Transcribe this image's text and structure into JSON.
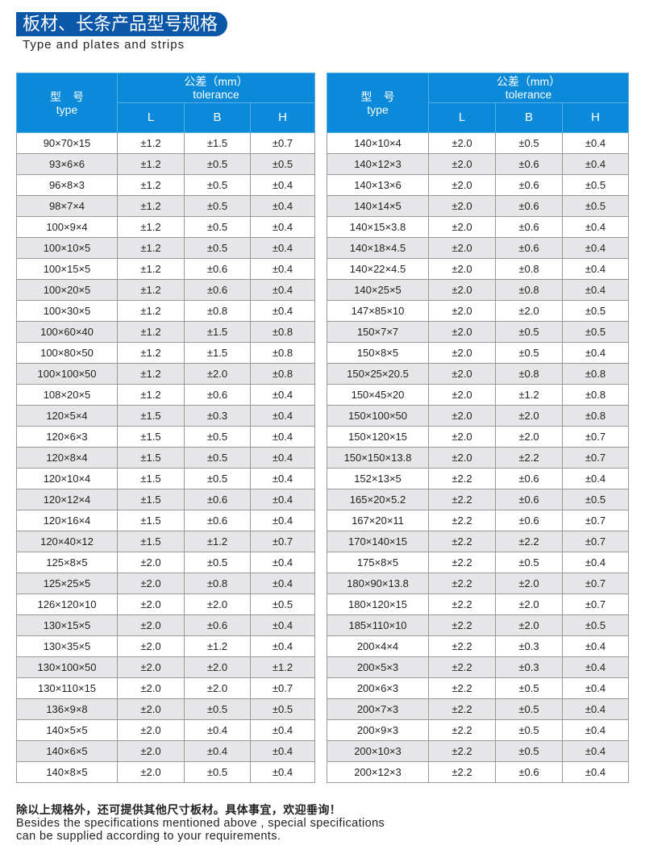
{
  "header": {
    "title": "板材、长条产品型号规格",
    "subtitle": "Type and plates and strips",
    "accent_color": "#0a57a8",
    "table_header_color": "#0a8ad8"
  },
  "table_headers": {
    "type_cn": "型　号",
    "type_en": "type",
    "tolerance_cn": "公差（mm）",
    "tolerance_en": "tolerance",
    "L": "L",
    "B": "B",
    "H": "H"
  },
  "left_table": [
    [
      "90×70×15",
      "±1.2",
      "±1.5",
      "±0.7"
    ],
    [
      "93×6×6",
      "±1.2",
      "±0.5",
      "±0.5"
    ],
    [
      "96×8×3",
      "±1.2",
      "±0.5",
      "±0.4"
    ],
    [
      "98×7×4",
      "±1.2",
      "±0.5",
      "±0.4"
    ],
    [
      "100×9×4",
      "±1.2",
      "±0.5",
      "±0.4"
    ],
    [
      "100×10×5",
      "±1.2",
      "±0.5",
      "±0.4"
    ],
    [
      "100×15×5",
      "±1.2",
      "±0.6",
      "±0.4"
    ],
    [
      "100×20×5",
      "±1.2",
      "±0.6",
      "±0.4"
    ],
    [
      "100×30×5",
      "±1.2",
      "±0.8",
      "±0.4"
    ],
    [
      "100×60×40",
      "±1.2",
      "±1.5",
      "±0.8"
    ],
    [
      "100×80×50",
      "±1.2",
      "±1.5",
      "±0.8"
    ],
    [
      "100×100×50",
      "±1.2",
      "±2.0",
      "±0.8"
    ],
    [
      "108×20×5",
      "±1.2",
      "±0.6",
      "±0.4"
    ],
    [
      "120×5×4",
      "±1.5",
      "±0.3",
      "±0.4"
    ],
    [
      "120×6×3",
      "±1.5",
      "±0.5",
      "±0.4"
    ],
    [
      "120×8×4",
      "±1.5",
      "±0.5",
      "±0.4"
    ],
    [
      "120×10×4",
      "±1.5",
      "±0.5",
      "±0.4"
    ],
    [
      "120×12×4",
      "±1.5",
      "±0.6",
      "±0.4"
    ],
    [
      "120×16×4",
      "±1.5",
      "±0.6",
      "±0.4"
    ],
    [
      "120×40×12",
      "±1.5",
      "±1.2",
      "±0.7"
    ],
    [
      "125×8×5",
      "±2.0",
      "±0.5",
      "±0.4"
    ],
    [
      "125×25×5",
      "±2.0",
      "±0.8",
      "±0.4"
    ],
    [
      "126×120×10",
      "±2.0",
      "±2.0",
      "±0.5"
    ],
    [
      "130×15×5",
      "±2.0",
      "±0.6",
      "±0.4"
    ],
    [
      "130×35×5",
      "±2.0",
      "±1.2",
      "±0.4"
    ],
    [
      "130×100×50",
      "±2.0",
      "±2.0",
      "±1.2"
    ],
    [
      "130×110×15",
      "±2.0",
      "±2.0",
      "±0.7"
    ],
    [
      "136×9×8",
      "±2.0",
      "±0.5",
      "±0.5"
    ],
    [
      "140×5×5",
      "±2.0",
      "±0.4",
      "±0.4"
    ],
    [
      "140×6×5",
      "±2.0",
      "±0.4",
      "±0.4"
    ],
    [
      "140×8×5",
      "±2.0",
      "±0.5",
      "±0.4"
    ]
  ],
  "right_table": [
    [
      "140×10×4",
      "±2.0",
      "±0.5",
      "±0.4"
    ],
    [
      "140×12×3",
      "±2.0",
      "±0.6",
      "±0.4"
    ],
    [
      "140×13×6",
      "±2.0",
      "±0.6",
      "±0.5"
    ],
    [
      "140×14×5",
      "±2.0",
      "±0.6",
      "±0.5"
    ],
    [
      "140×15×3.8",
      "±2.0",
      "±0.6",
      "±0.4"
    ],
    [
      "140×18×4.5",
      "±2.0",
      "±0.6",
      "±0.4"
    ],
    [
      "140×22×4.5",
      "±2.0",
      "±0.8",
      "±0.4"
    ],
    [
      "140×25×5",
      "±2.0",
      "±0.8",
      "±0.4"
    ],
    [
      "147×85×10",
      "±2.0",
      "±2.0",
      "±0.5"
    ],
    [
      "150×7×7",
      "±2.0",
      "±0.5",
      "±0.5"
    ],
    [
      "150×8×5",
      "±2.0",
      "±0.5",
      "±0.4"
    ],
    [
      "150×25×20.5",
      "±2.0",
      "±0.8",
      "±0.8"
    ],
    [
      "150×45×20",
      "±2.0",
      "±1.2",
      "±0.8"
    ],
    [
      "150×100×50",
      "±2.0",
      "±2.0",
      "±0.8"
    ],
    [
      "150×120×15",
      "±2.0",
      "±2.0",
      "±0.7"
    ],
    [
      "150×150×13.8",
      "±2.0",
      "±2.2",
      "±0.7"
    ],
    [
      "152×13×5",
      "±2.2",
      "±0.6",
      "±0.4"
    ],
    [
      "165×20×5.2",
      "±2.2",
      "±0.6",
      "±0.5"
    ],
    [
      "167×20×11",
      "±2.2",
      "±0.6",
      "±0.7"
    ],
    [
      "170×140×15",
      "±2.2",
      "±2.2",
      "±0.7"
    ],
    [
      "175×8×5",
      "±2.2",
      "±0.5",
      "±0.4"
    ],
    [
      "180×90×13.8",
      "±2.2",
      "±2.0",
      "±0.7"
    ],
    [
      "180×120×15",
      "±2.2",
      "±2.0",
      "±0.7"
    ],
    [
      "185×110×10",
      "±2.2",
      "±2.0",
      "±0.5"
    ],
    [
      "200×4×4",
      "±2.2",
      "±0.3",
      "±0.4"
    ],
    [
      "200×5×3",
      "±2.2",
      "±0.3",
      "±0.4"
    ],
    [
      "200×6×3",
      "±2.2",
      "±0.5",
      "±0.4"
    ],
    [
      "200×7×3",
      "±2.2",
      "±0.5",
      "±0.4"
    ],
    [
      "200×9×3",
      "±2.2",
      "±0.5",
      "±0.4"
    ],
    [
      "200×10×3",
      "±2.2",
      "±0.5",
      "±0.4"
    ],
    [
      "200×12×3",
      "±2.2",
      "±0.6",
      "±0.4"
    ]
  ],
  "footer": {
    "note_cn": "除以上规格外，还可提供其他尺寸板材。具体事宜，欢迎垂询！",
    "note_en_1": "Besides the specifications mentioned above , special specifications",
    "note_en_2": "can be supplied according to your requirements."
  }
}
